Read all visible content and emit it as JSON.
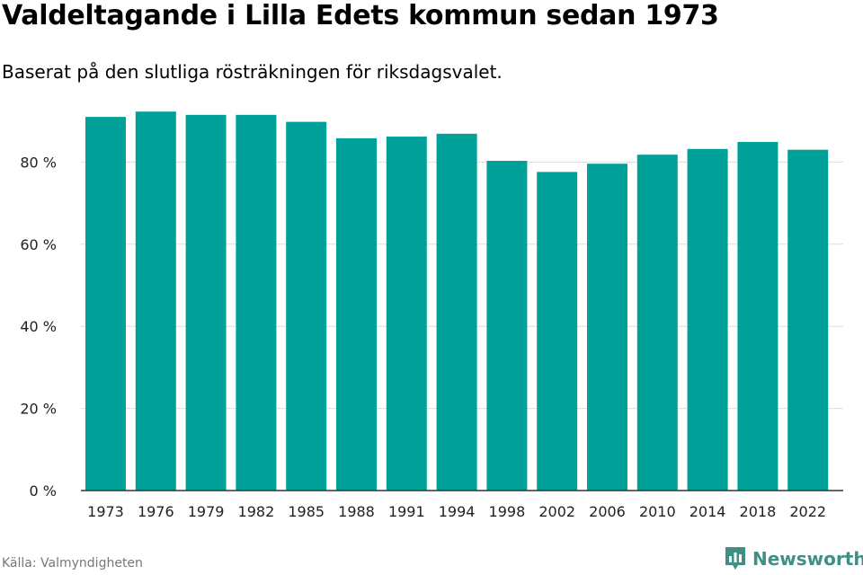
{
  "header": {
    "title": "Valdeltagande i Lilla Edets kommun sedan 1973",
    "subtitle": "Baserat på den slutliga rösträkningen för riksdagsvalet."
  },
  "footer": {
    "source": "Källa: Valmyndigheten",
    "brand": "Newsworthy"
  },
  "colors": {
    "bar": "#00a199",
    "grid": "#dddddd",
    "axis": "#333333",
    "brand": "#3f8f85"
  },
  "chart_data": {
    "type": "bar",
    "title": "Valdeltagande i Lilla Edets kommun sedan 1973",
    "subtitle": "Baserat på den slutliga rösträkningen för riksdagsvalet.",
    "xlabel": "",
    "ylabel": "",
    "categories": [
      "1973",
      "1976",
      "1979",
      "1982",
      "1985",
      "1988",
      "1991",
      "1994",
      "1998",
      "2002",
      "2006",
      "2010",
      "2014",
      "2018",
      "2022"
    ],
    "values": [
      91.0,
      92.3,
      91.5,
      91.5,
      89.8,
      85.8,
      86.2,
      86.9,
      80.3,
      77.6,
      79.6,
      81.8,
      83.2,
      84.9,
      83.0
    ],
    "ylim": [
      0,
      100
    ],
    "yticks": [
      0,
      20,
      40,
      60,
      80
    ],
    "ytick_labels": [
      "0 %",
      "20 %",
      "40 %",
      "60 %",
      "80 %"
    ],
    "grid": true,
    "legend": "none"
  }
}
